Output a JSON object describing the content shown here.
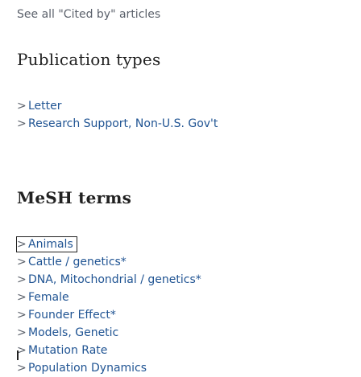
{
  "see_all_link": "See all \"Cited by\" articles",
  "publication_types": {
    "heading": "Publication types",
    "items": [
      {
        "label": "Letter"
      },
      {
        "label": "Research Support, Non-U.S. Gov't"
      }
    ]
  },
  "mesh_terms": {
    "heading": "MeSH terms",
    "items": [
      {
        "label": "Animals"
      },
      {
        "label": "Cattle / genetics*"
      },
      {
        "label": "DNA, Mitochondrial / genetics*"
      },
      {
        "label": "Female"
      },
      {
        "label": "Founder Effect*"
      },
      {
        "label": "Models, Genetic"
      },
      {
        "label": "Mutation Rate"
      },
      {
        "label": "Population Dynamics"
      }
    ]
  },
  "colors": {
    "link": "#205493",
    "text": "#212121",
    "muted": "#5b616b"
  },
  "icons": {
    "chevron": "chevron-right-icon"
  }
}
